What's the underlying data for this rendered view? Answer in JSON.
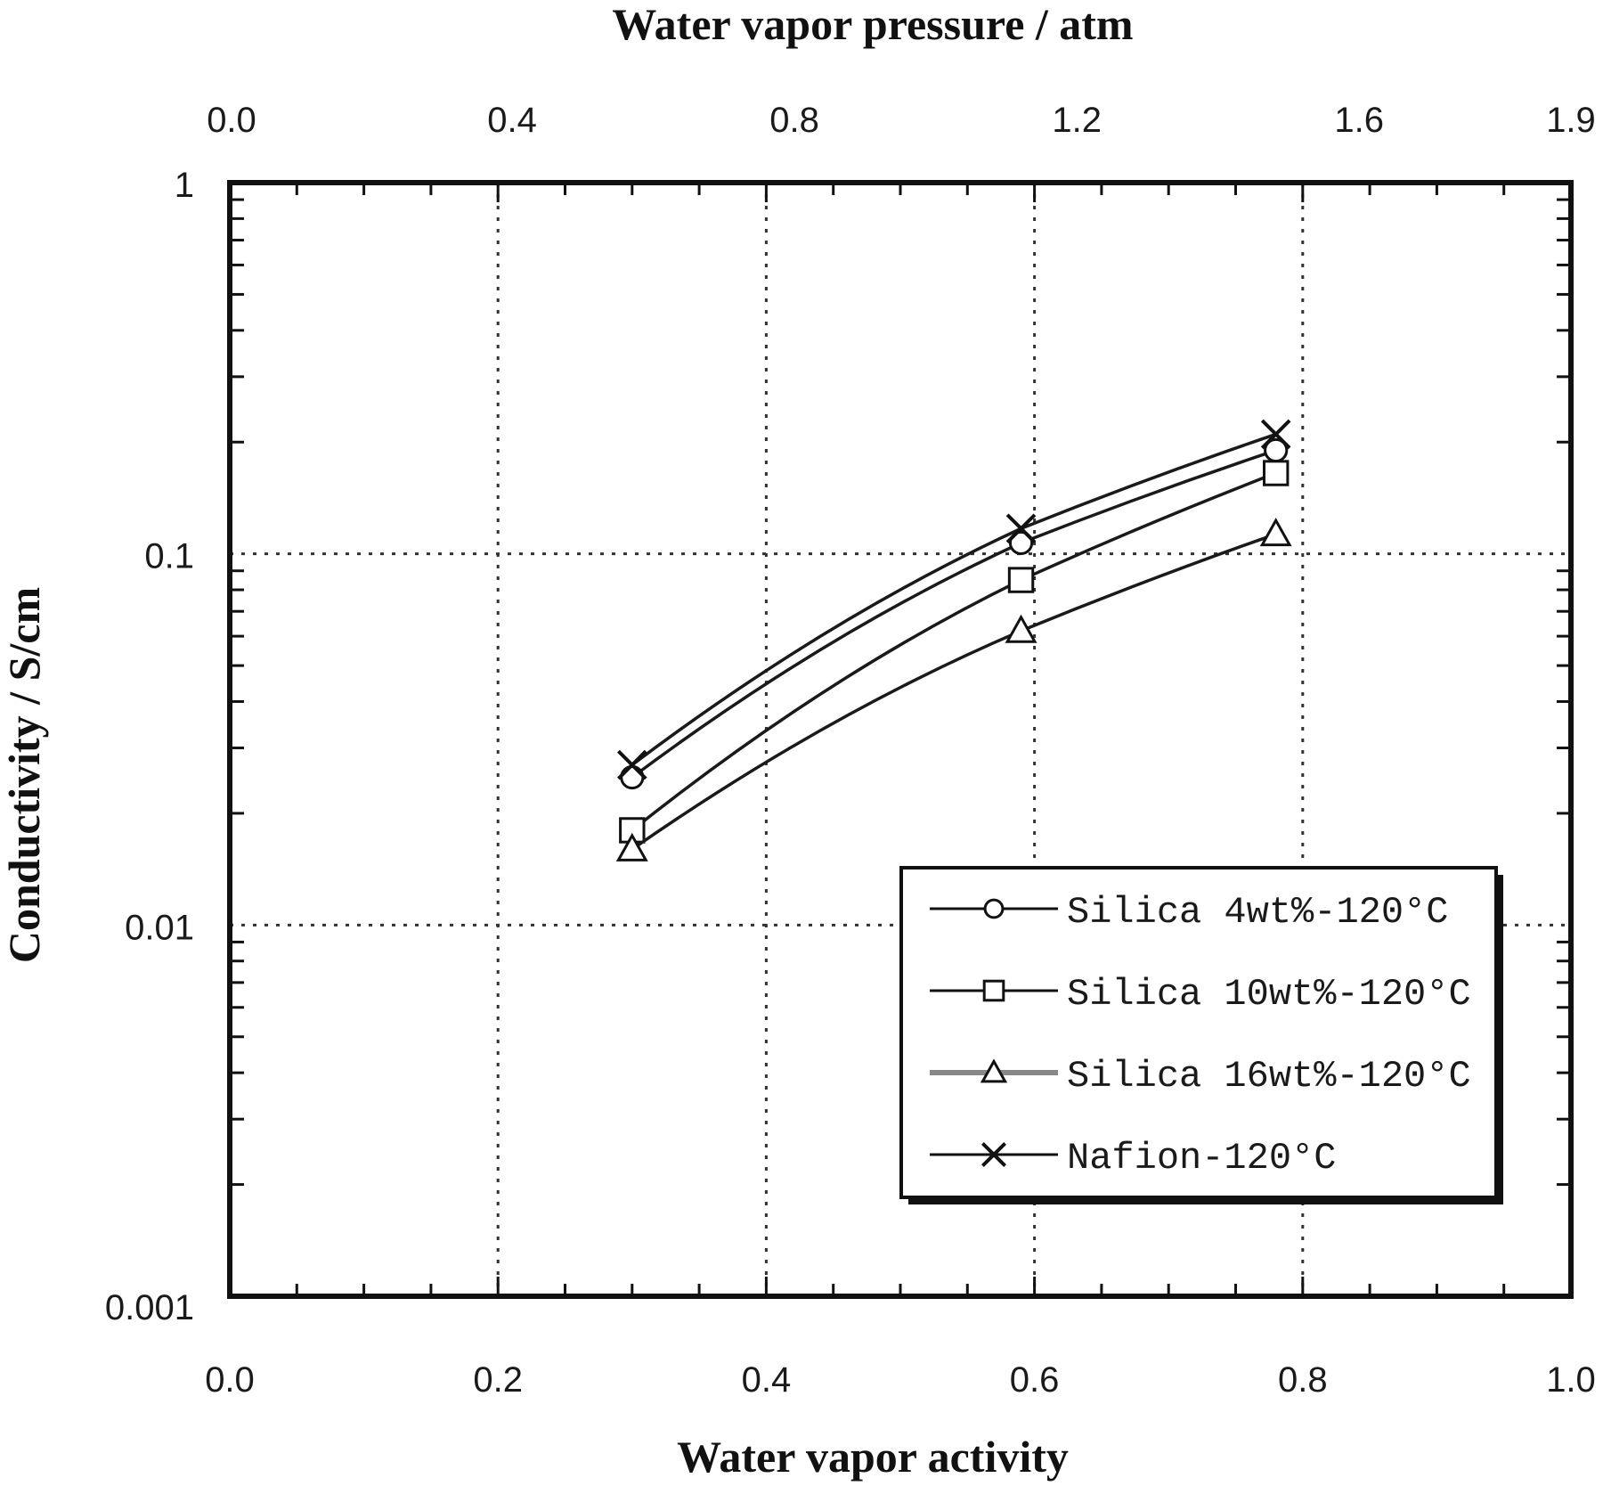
{
  "chart_data": {
    "type": "line",
    "title": "",
    "xlabel": "Water vapor activity",
    "x2label": "Water vapor pressure / atm",
    "ylabel": "Conductivity / S/cm",
    "xlim": [
      0.0,
      1.0
    ],
    "ylim": [
      0.001,
      1
    ],
    "yscale": "log",
    "x_ticks": [
      "0.0",
      "0.2",
      "0.4",
      "0.6",
      "0.8",
      "1.0"
    ],
    "x2_ticks": [
      "0.0",
      "0.4",
      "0.8",
      "1.2",
      "1.6",
      "1.9"
    ],
    "y_ticks": [
      "1",
      "0.1",
      "0.01",
      "0.001"
    ],
    "grid": true,
    "legend_position": "lower right",
    "x": [
      0.3,
      0.59,
      0.78
    ],
    "series": [
      {
        "name": "Silica 4wt%-120°C",
        "marker": "circle",
        "values": [
          0.025,
          0.107,
          0.19
        ]
      },
      {
        "name": "Silica 10wt%-120°C",
        "marker": "square",
        "values": [
          0.018,
          0.085,
          0.165
        ]
      },
      {
        "name": "Silica 16wt%-120°C",
        "marker": "triangle",
        "values": [
          0.016,
          0.062,
          0.113
        ]
      },
      {
        "name": "Nafion-120°C",
        "marker": "x",
        "values": [
          0.027,
          0.117,
          0.21
        ]
      }
    ]
  },
  "labels": {
    "top_axis_title": "Water vapor pressure / atm",
    "bottom_axis_title": "Water vapor activity",
    "left_axis_title": "Conductivity / S/cm"
  },
  "colors": {
    "line": "#1a1a1a",
    "grid": "#333333",
    "background": "#ffffff"
  }
}
